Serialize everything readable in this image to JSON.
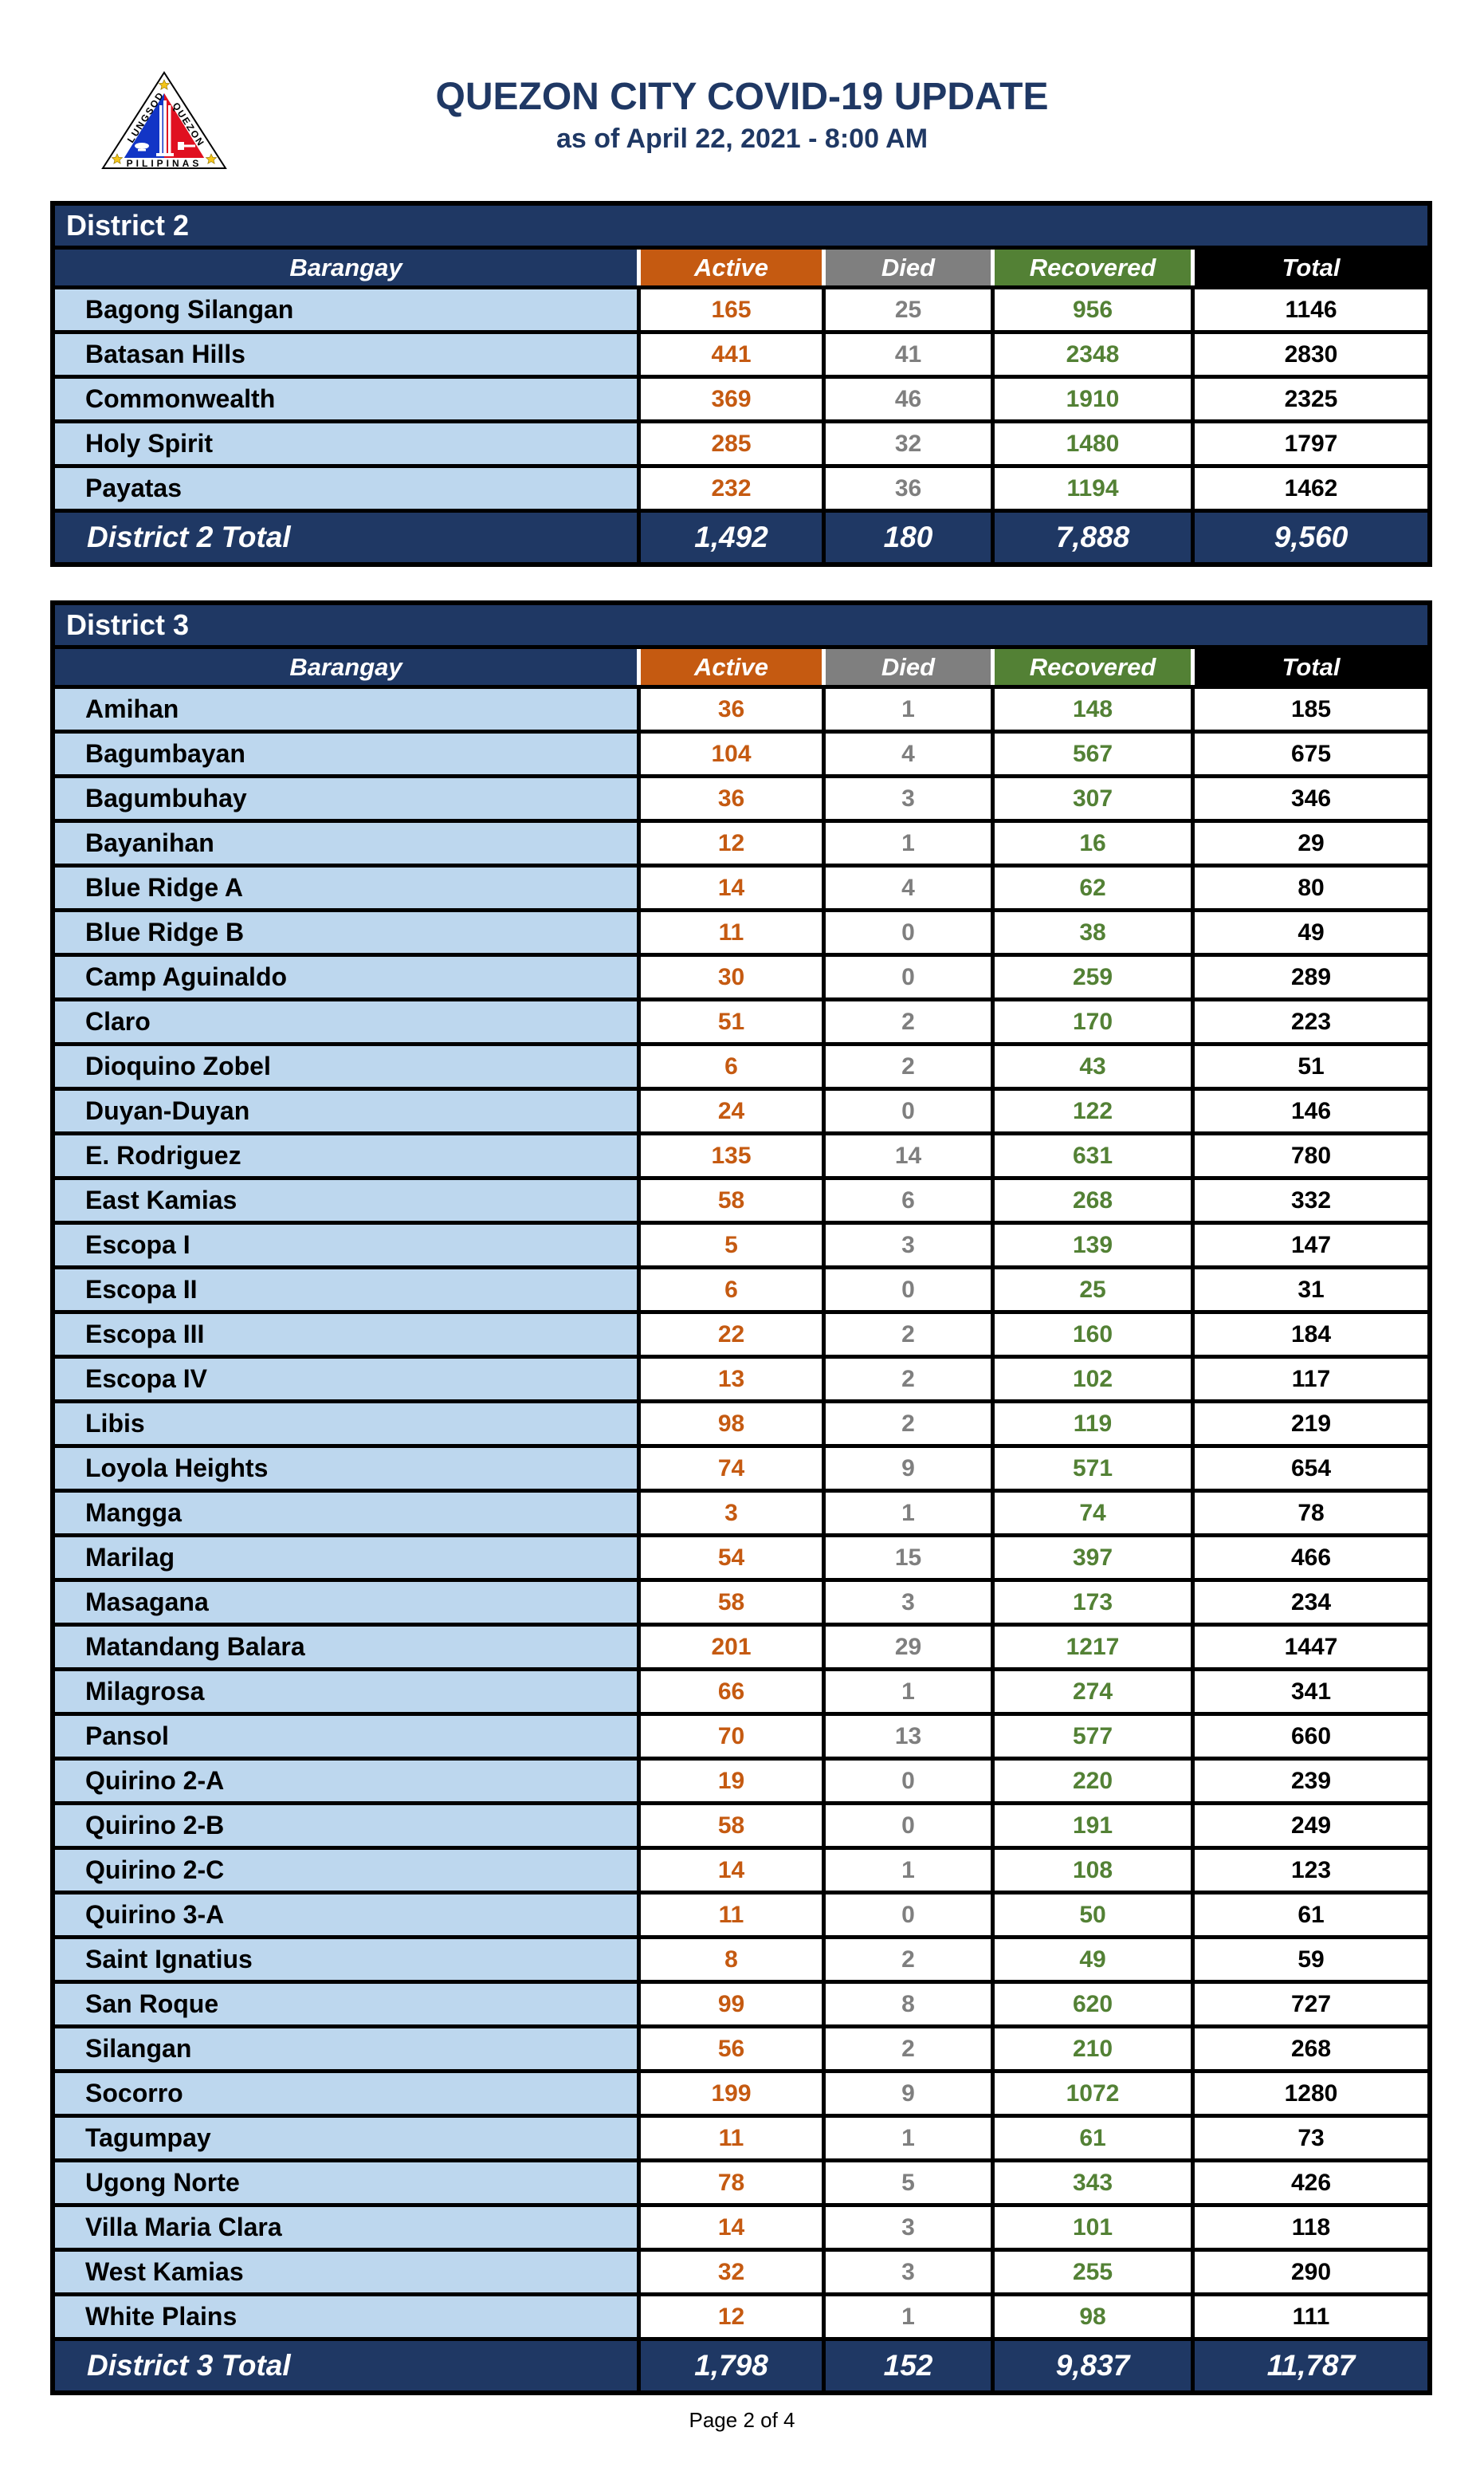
{
  "page": {
    "title": "QUEZON CITY COVID-19 UPDATE",
    "subtitle": "as of April 22, 2021 - 8:00 AM",
    "footer": "Page 2 of 4"
  },
  "logo": {
    "text_left": "LUNGSOD",
    "text_right": "QUEZON",
    "text_bottom": "PILIPINAS"
  },
  "columns": [
    "Barangay",
    "Active",
    "Died",
    "Recovered",
    "Total"
  ],
  "colors": {
    "navy": "#1F3864",
    "orange": "#C55A11",
    "gray": "#7F7F7F",
    "green": "#538135",
    "black": "#000000",
    "light_blue": "#BDD7EE",
    "flag_blue": "#1235C6",
    "flag_red": "#E01020",
    "star_yellow": "#F5C518"
  },
  "tables": [
    {
      "district": "District 2",
      "rows": [
        [
          "Bagong Silangan",
          "165",
          "25",
          "956",
          "1146"
        ],
        [
          "Batasan Hills",
          "441",
          "41",
          "2348",
          "2830"
        ],
        [
          "Commonwealth",
          "369",
          "46",
          "1910",
          "2325"
        ],
        [
          "Holy Spirit",
          "285",
          "32",
          "1480",
          "1797"
        ],
        [
          "Payatas",
          "232",
          "36",
          "1194",
          "1462"
        ]
      ],
      "total": [
        "District 2 Total",
        "1,492",
        "180",
        "7,888",
        "9,560"
      ]
    },
    {
      "district": "District 3",
      "rows": [
        [
          "Amihan",
          "36",
          "1",
          "148",
          "185"
        ],
        [
          "Bagumbayan",
          "104",
          "4",
          "567",
          "675"
        ],
        [
          "Bagumbuhay",
          "36",
          "3",
          "307",
          "346"
        ],
        [
          "Bayanihan",
          "12",
          "1",
          "16",
          "29"
        ],
        [
          "Blue Ridge A",
          "14",
          "4",
          "62",
          "80"
        ],
        [
          "Blue Ridge B",
          "11",
          "0",
          "38",
          "49"
        ],
        [
          "Camp Aguinaldo",
          "30",
          "0",
          "259",
          "289"
        ],
        [
          "Claro",
          "51",
          "2",
          "170",
          "223"
        ],
        [
          "Dioquino Zobel",
          "6",
          "2",
          "43",
          "51"
        ],
        [
          "Duyan-Duyan",
          "24",
          "0",
          "122",
          "146"
        ],
        [
          "E. Rodriguez",
          "135",
          "14",
          "631",
          "780"
        ],
        [
          "East Kamias",
          "58",
          "6",
          "268",
          "332"
        ],
        [
          "Escopa I",
          "5",
          "3",
          "139",
          "147"
        ],
        [
          "Escopa II",
          "6",
          "0",
          "25",
          "31"
        ],
        [
          "Escopa III",
          "22",
          "2",
          "160",
          "184"
        ],
        [
          "Escopa IV",
          "13",
          "2",
          "102",
          "117"
        ],
        [
          "Libis",
          "98",
          "2",
          "119",
          "219"
        ],
        [
          "Loyola Heights",
          "74",
          "9",
          "571",
          "654"
        ],
        [
          "Mangga",
          "3",
          "1",
          "74",
          "78"
        ],
        [
          "Marilag",
          "54",
          "15",
          "397",
          "466"
        ],
        [
          "Masagana",
          "58",
          "3",
          "173",
          "234"
        ],
        [
          "Matandang Balara",
          "201",
          "29",
          "1217",
          "1447"
        ],
        [
          "Milagrosa",
          "66",
          "1",
          "274",
          "341"
        ],
        [
          "Pansol",
          "70",
          "13",
          "577",
          "660"
        ],
        [
          "Quirino 2-A",
          "19",
          "0",
          "220",
          "239"
        ],
        [
          "Quirino 2-B",
          "58",
          "0",
          "191",
          "249"
        ],
        [
          "Quirino 2-C",
          "14",
          "1",
          "108",
          "123"
        ],
        [
          "Quirino 3-A",
          "11",
          "0",
          "50",
          "61"
        ],
        [
          "Saint Ignatius",
          "8",
          "2",
          "49",
          "59"
        ],
        [
          "San Roque",
          "99",
          "8",
          "620",
          "727"
        ],
        [
          "Silangan",
          "56",
          "2",
          "210",
          "268"
        ],
        [
          "Socorro",
          "199",
          "9",
          "1072",
          "1280"
        ],
        [
          "Tagumpay",
          "11",
          "1",
          "61",
          "73"
        ],
        [
          "Ugong Norte",
          "78",
          "5",
          "343",
          "426"
        ],
        [
          "Villa Maria Clara",
          "14",
          "3",
          "101",
          "118"
        ],
        [
          "West Kamias",
          "32",
          "3",
          "255",
          "290"
        ],
        [
          "White Plains",
          "12",
          "1",
          "98",
          "111"
        ]
      ],
      "total": [
        "District 3 Total",
        "1,798",
        "152",
        "9,837",
        "11,787"
      ]
    }
  ]
}
